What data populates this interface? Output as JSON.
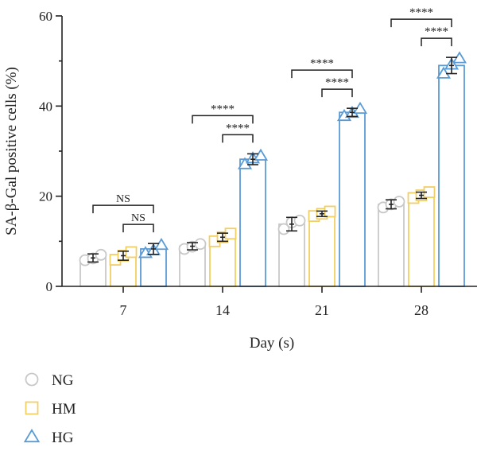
{
  "chart_data": {
    "type": "bar",
    "xlabel": "Day (s)",
    "ylabel": "SA-β-Gal positive cells (%)",
    "ylim": [
      0,
      60
    ],
    "yticks": [
      0,
      20,
      40,
      60
    ],
    "categories": [
      "7",
      "14",
      "21",
      "28"
    ],
    "grid": false,
    "legend_position": "bottom-left",
    "series": [
      {
        "name": "NG",
        "marker": "circle",
        "color": "#c8c8c8",
        "values": [
          6.3,
          8.9,
          13.8,
          18.2
        ],
        "errors": [
          0.9,
          0.8,
          1.5,
          1.0
        ],
        "points": [
          [
            5.8,
            6.2,
            7.0
          ],
          [
            8.3,
            8.8,
            9.4
          ],
          [
            12.7,
            14.2,
            14.6
          ],
          [
            17.5,
            18.2,
            18.8
          ]
        ]
      },
      {
        "name": "HM",
        "marker": "square",
        "color": "#f2cf63",
        "values": [
          6.8,
          10.9,
          16.1,
          20.2
        ],
        "errors": [
          1.0,
          0.9,
          0.6,
          0.7
        ],
        "points": [
          [
            5.9,
            6.8,
            7.6
          ],
          [
            10.0,
            10.9,
            11.7
          ],
          [
            15.6,
            16.1,
            16.6
          ],
          [
            19.6,
            20.2,
            20.9
          ]
        ]
      },
      {
        "name": "HG",
        "marker": "triangle",
        "color": "#5b9bd5",
        "values": [
          8.3,
          28.2,
          38.6,
          49.0
        ],
        "errors": [
          1.2,
          1.2,
          0.9,
          1.8
        ],
        "points": [
          [
            7.4,
            8.0,
            9.2
          ],
          [
            27.1,
            28.4,
            29.0
          ],
          [
            37.8,
            38.5,
            39.4
          ],
          [
            47.2,
            49.2,
            50.6
          ]
        ]
      }
    ],
    "annotations": [
      {
        "category": "7",
        "from": "NG",
        "to": "HG",
        "label": "NS",
        "level": 2
      },
      {
        "category": "7",
        "from": "HM",
        "to": "HG",
        "label": "NS",
        "level": 1
      },
      {
        "category": "14",
        "from": "NG",
        "to": "HG",
        "label": "****",
        "level": 2
      },
      {
        "category": "14",
        "from": "HM",
        "to": "HG",
        "label": "****",
        "level": 1
      },
      {
        "category": "21",
        "from": "NG",
        "to": "HG",
        "label": "****",
        "level": 2
      },
      {
        "category": "21",
        "from": "HM",
        "to": "HG",
        "label": "****",
        "level": 1
      },
      {
        "category": "28",
        "from": "NG",
        "to": "HG",
        "label": "****",
        "level": 2
      },
      {
        "category": "28",
        "from": "HM",
        "to": "HG",
        "label": "****",
        "level": 1
      }
    ]
  }
}
